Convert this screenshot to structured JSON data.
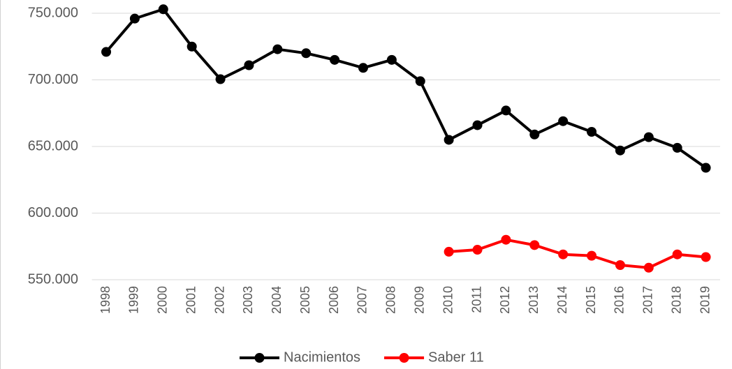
{
  "chart_data": {
    "type": "line",
    "categories": [
      "1998",
      "1999",
      "2000",
      "2001",
      "2002",
      "2003",
      "2004",
      "2005",
      "2006",
      "2007",
      "2008",
      "2009",
      "2010",
      "2011",
      "2012",
      "2013",
      "2014",
      "2015",
      "2016",
      "2017",
      "2018",
      "2019"
    ],
    "series": [
      {
        "name": "Nacimientos",
        "color": "#000000",
        "values": [
          721000,
          746000,
          753000,
          725000,
          700500,
          711000,
          723000,
          720000,
          715000,
          709000,
          715000,
          699000,
          655000,
          666000,
          677000,
          659000,
          669000,
          661000,
          647000,
          657000,
          649000,
          634000
        ]
      },
      {
        "name": "Saber 11",
        "color": "#ff0000",
        "values": [
          null,
          null,
          null,
          null,
          null,
          null,
          null,
          null,
          null,
          null,
          null,
          null,
          571000,
          572500,
          580000,
          576000,
          569000,
          568000,
          561000,
          559000,
          569000,
          567000
        ]
      }
    ],
    "ylim": [
      550000,
      755000
    ],
    "yticks": [
      {
        "value": 550000,
        "label": "550.000"
      },
      {
        "value": 600000,
        "label": "600.000"
      },
      {
        "value": 650000,
        "label": "650.000"
      },
      {
        "value": 700000,
        "label": "700.000"
      },
      {
        "value": 750000,
        "label": "750.000"
      }
    ],
    "grid": true,
    "legend": "bottom"
  }
}
